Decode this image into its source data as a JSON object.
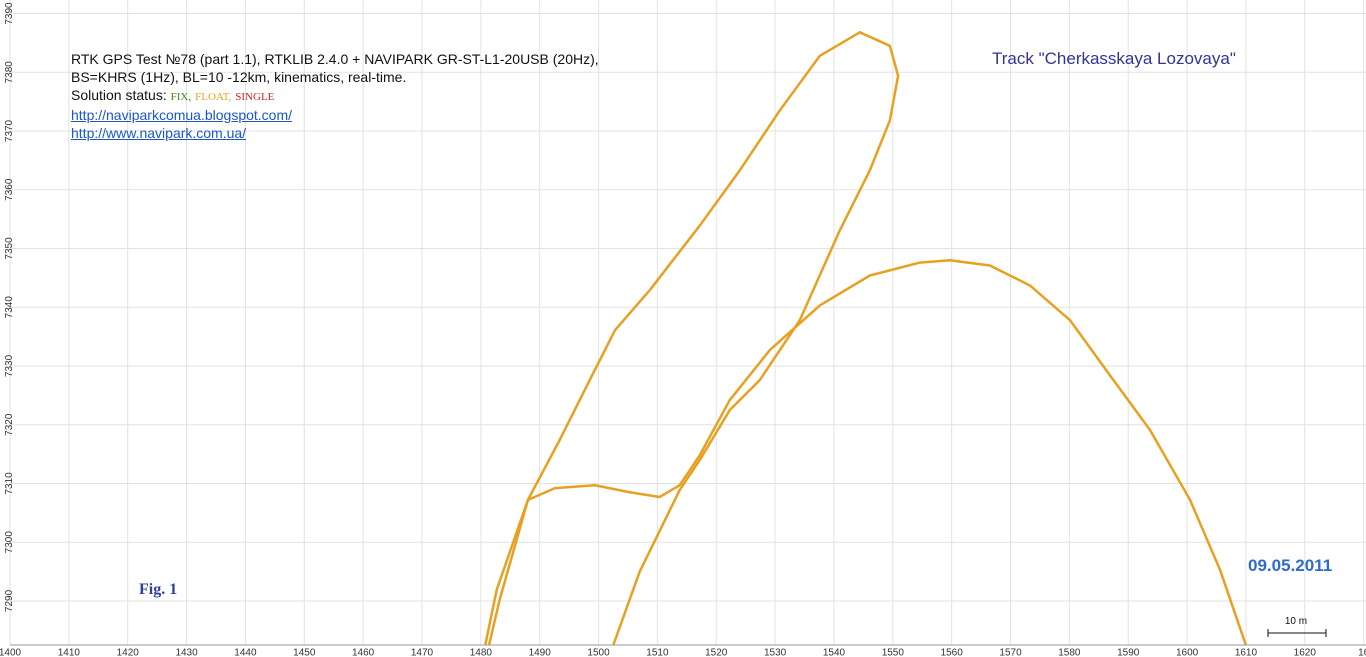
{
  "chart_data": {
    "type": "line",
    "title_lines": [
      "RTK GPS Test №78 (part 1.1), RTKLIB 2.4.0 + NAVIPARK GR-ST-L1-20USB (20Hz),",
      "BS=KHRS (1Hz), BL=10 -12km, kinematics, real-time."
    ],
    "status_label": "Solution status:",
    "statuses": [
      {
        "label": "FIX,",
        "color": "#3a8a1f"
      },
      {
        "label": "FLOAT,",
        "color": "#e8a021"
      },
      {
        "label": "SINGLE",
        "color": "#d42020"
      }
    ],
    "links": [
      "http://naviparkcomua.blogspot.com/",
      "http://www.navipark.com.ua/"
    ],
    "track_title": "Track \"Cherkasskaya Lozovaya\"",
    "date": "09.05.2011",
    "figure_label": "Fig. 1",
    "scale_label": "10 m",
    "xlim": [
      1400,
      1630.4
    ],
    "ylim": [
      7282.5,
      7392.3
    ],
    "xticks": [
      1400,
      1410,
      1420,
      1430,
      1440,
      1450,
      1460,
      1470,
      1480,
      1490,
      1500,
      1510,
      1520,
      1530,
      1540,
      1550,
      1560,
      1570,
      1580,
      1590,
      1600,
      1610,
      1620,
      {
        "value": 1630,
        "label": "16"
      }
    ],
    "yticks": [
      7290,
      7300,
      7310,
      7320,
      7330,
      7340,
      7350,
      7360,
      7370,
      7380,
      7390
    ],
    "grid": true,
    "series": [
      {
        "color": "#e8a021",
        "x": [
          1480.4,
          1482.7,
          1488.0,
          1493.4,
          1498.5,
          1502.8,
          1508.7,
          1517.2,
          1524.0,
          1530.8,
          1537.6,
          1544.4,
          1549.5,
          1550.9,
          1549.5,
          1546.1,
          1541.0,
          1534.2,
          1527.4,
          1522.3,
          1517.2,
          1513.8,
          1507.0,
          1501.9
        ],
        "y": [
          7280.8,
          7291.9,
          7307.2,
          7317.4,
          7327.6,
          7336.1,
          7342.9,
          7353.9,
          7363.3,
          7373.5,
          7382.8,
          7386.8,
          7384.5,
          7379.4,
          7371.8,
          7363.3,
          7353.1,
          7337.8,
          7327.6,
          7322.5,
          7314.0,
          7308.9,
          7295.0,
          7280.8
        ]
      },
      {
        "color": "#e8a021",
        "x": [
          1481.0,
          1483.2,
          1488.0,
          1492.6,
          1499.4,
          1505.3,
          1510.4,
          1513.8,
          1517.2,
          1522.3,
          1529.1,
          1537.6,
          1546.1,
          1554.6,
          1559.7,
          1566.5,
          1573.3,
          1580.1,
          1586.9,
          1593.7,
          1600.5,
          1605.6,
          1610.3
        ],
        "y": [
          7280.8,
          7290.2,
          7307.2,
          7309.2,
          7309.7,
          7308.5,
          7307.7,
          7309.7,
          7314.8,
          7324.2,
          7332.7,
          7340.3,
          7345.4,
          7347.6,
          7348.0,
          7347.1,
          7343.7,
          7337.8,
          7328.4,
          7319.1,
          7307.2,
          7295.3,
          7281.6
        ]
      }
    ]
  }
}
